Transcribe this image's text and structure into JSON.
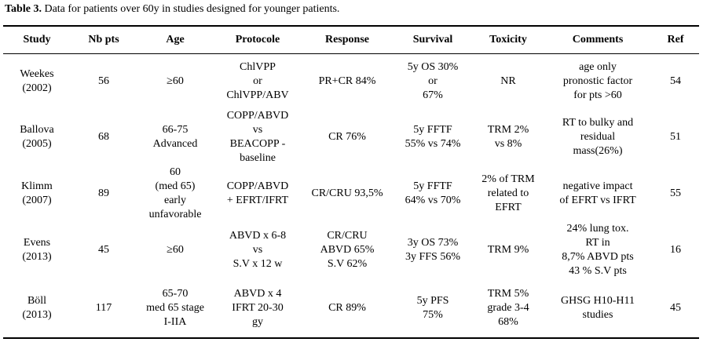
{
  "caption": {
    "label": "Table 3.",
    "text": " Data for patients over 60y in studies designed for younger patients."
  },
  "headers": [
    "Study",
    "Nb pts",
    "Age",
    "Protocole",
    "Response",
    "Survival",
    "Toxicity",
    "Comments",
    "Ref"
  ],
  "rows": [
    {
      "study": [
        "Weekes",
        "(2002)"
      ],
      "nb": [
        "56"
      ],
      "age": [
        "≥60"
      ],
      "protocole": [
        "ChlVPP",
        "or",
        "ChlVPP/ABV"
      ],
      "response": [
        "PR+CR 84%"
      ],
      "survival": [
        "5y OS  30%",
        "or",
        "67%"
      ],
      "toxicity": [
        "NR"
      ],
      "comments": [
        "age only",
        "pronostic factor",
        "for pts >60"
      ],
      "ref": [
        "54"
      ]
    },
    {
      "study": [
        "Ballova",
        "(2005)"
      ],
      "nb": [
        "68"
      ],
      "age": [
        "66-75",
        "Advanced"
      ],
      "protocole": [
        "COPP/ABVD",
        "vs",
        "BEACOPP -",
        "baseline"
      ],
      "response": [
        "CR 76%"
      ],
      "survival": [
        "5y FFTF",
        "55% vs 74%"
      ],
      "toxicity": [
        "TRM 2%",
        "vs 8%"
      ],
      "comments": [
        "RT to bulky  and",
        "residual",
        "mass(26%)"
      ],
      "ref": [
        "51"
      ]
    },
    {
      "study": [
        "Klimm",
        "(2007)"
      ],
      "nb": [
        "89"
      ],
      "age": [
        "60",
        "(med 65)",
        "early",
        "unfavorable"
      ],
      "protocole": [
        "COPP/ABVD",
        "+ EFRT/IFRT"
      ],
      "response": [
        "CR/CRU 93,5%"
      ],
      "survival": [
        "5y FFTF",
        "64% vs 70%"
      ],
      "toxicity": [
        "2% of TRM",
        "related to",
        "EFRT"
      ],
      "comments": [
        "negative impact",
        "of EFRT vs IFRT"
      ],
      "ref": [
        "55"
      ]
    },
    {
      "study": [
        "Evens",
        "(2013)"
      ],
      "nb": [
        "45"
      ],
      "age": [
        "≥60"
      ],
      "protocole": [
        "ABVD  x 6-8",
        "vs",
        "S.V  x 12 w"
      ],
      "response": [
        "CR/CRU",
        "ABVD 65%",
        "S.V 62%"
      ],
      "survival": [
        "3y OS 73%",
        "3y FFS 56%"
      ],
      "toxicity": [
        "TRM 9%"
      ],
      "comments": [
        "24% lung tox.",
        "RT in",
        "8,7% ABVD pts",
        "43 % S.V pts"
      ],
      "ref": [
        "16"
      ]
    },
    {
      "study": [
        "Böll",
        "(2013)"
      ],
      "nb": [
        "117"
      ],
      "age": [
        "65-70",
        "med 65 stage",
        "I-IIA"
      ],
      "protocole": [
        "ABVD x 4",
        "IFRT 20-30",
        "gy"
      ],
      "response": [
        "CR 89%"
      ],
      "survival": [
        "5y PFS",
        "75%"
      ],
      "toxicity": [
        "TRM 5%",
        "grade 3-4",
        "68%"
      ],
      "comments": [
        "GHSG H10-H11",
        "studies"
      ],
      "ref": [
        "45"
      ]
    }
  ]
}
